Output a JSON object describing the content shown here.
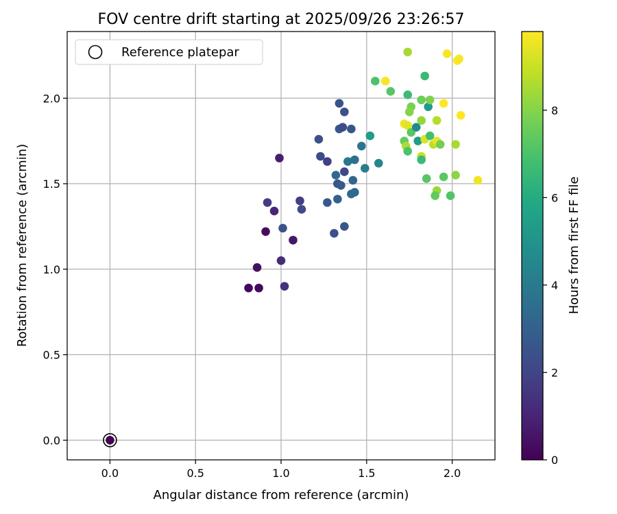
{
  "chart_data": {
    "type": "scatter",
    "title": "FOV centre drift starting at 2025/09/26 23:26:57",
    "xlabel": "Angular distance from reference (arcmin)",
    "ylabel": "Rotation from reference (arcmin)",
    "xlim": [
      -0.25,
      2.25
    ],
    "ylim": [
      -0.115,
      2.39
    ],
    "xticks": [
      "0.0",
      "0.5",
      "1.0",
      "1.5",
      "2.0"
    ],
    "yticks": [
      "0.0",
      "0.5",
      "1.0",
      "1.5",
      "2.0"
    ],
    "grid": true,
    "legend": {
      "label": "Reference platepar",
      "position": "top-left"
    },
    "reference_point": {
      "x": 0.0,
      "y": 0.0,
      "hours": 0
    },
    "colorbar": {
      "label": "Hours from first FF file",
      "range": [
        0,
        9.8
      ],
      "ticks": [
        "0",
        "2",
        "4",
        "6",
        "8"
      ],
      "colormap": "viridis"
    },
    "points": [
      {
        "x": 0.81,
        "y": 0.89,
        "h": 0.2
      },
      {
        "x": 0.87,
        "y": 0.89,
        "h": 0.2
      },
      {
        "x": 0.86,
        "y": 1.01,
        "h": 0.4
      },
      {
        "x": 0.91,
        "y": 1.22,
        "h": 0.3
      },
      {
        "x": 1.07,
        "y": 1.17,
        "h": 0.6
      },
      {
        "x": 0.99,
        "y": 1.65,
        "h": 0.8
      },
      {
        "x": 0.96,
        "y": 1.34,
        "h": 1.0
      },
      {
        "x": 1.0,
        "y": 1.05,
        "h": 1.2
      },
      {
        "x": 1.02,
        "y": 0.9,
        "h": 1.4
      },
      {
        "x": 0.92,
        "y": 1.39,
        "h": 1.7
      },
      {
        "x": 1.11,
        "y": 1.4,
        "h": 1.8
      },
      {
        "x": 1.12,
        "y": 1.35,
        "h": 2.2
      },
      {
        "x": 1.01,
        "y": 1.24,
        "h": 2.5
      },
      {
        "x": 1.22,
        "y": 1.76,
        "h": 2.4
      },
      {
        "x": 1.23,
        "y": 1.66,
        "h": 2.3
      },
      {
        "x": 1.27,
        "y": 1.63,
        "h": 1.8
      },
      {
        "x": 1.27,
        "y": 1.39,
        "h": 2.7
      },
      {
        "x": 1.31,
        "y": 1.21,
        "h": 2.4
      },
      {
        "x": 1.34,
        "y": 1.97,
        "h": 2.5
      },
      {
        "x": 1.37,
        "y": 1.92,
        "h": 2.4
      },
      {
        "x": 1.34,
        "y": 1.82,
        "h": 2.7
      },
      {
        "x": 1.36,
        "y": 1.83,
        "h": 2.2
      },
      {
        "x": 1.41,
        "y": 1.82,
        "h": 2.6
      },
      {
        "x": 1.37,
        "y": 1.57,
        "h": 2.1
      },
      {
        "x": 1.33,
        "y": 1.5,
        "h": 2.5
      },
      {
        "x": 1.35,
        "y": 1.49,
        "h": 2.8
      },
      {
        "x": 1.32,
        "y": 1.55,
        "h": 3.3
      },
      {
        "x": 1.33,
        "y": 1.41,
        "h": 3.0
      },
      {
        "x": 1.37,
        "y": 1.25,
        "h": 2.6
      },
      {
        "x": 1.39,
        "y": 1.63,
        "h": 3.9
      },
      {
        "x": 1.43,
        "y": 1.64,
        "h": 3.6
      },
      {
        "x": 1.42,
        "y": 1.52,
        "h": 3.2
      },
      {
        "x": 1.41,
        "y": 1.44,
        "h": 3.4
      },
      {
        "x": 1.43,
        "y": 1.45,
        "h": 3.3
      },
      {
        "x": 1.47,
        "y": 1.72,
        "h": 3.8
      },
      {
        "x": 1.49,
        "y": 1.59,
        "h": 4.2
      },
      {
        "x": 1.52,
        "y": 1.78,
        "h": 5.4
      },
      {
        "x": 1.57,
        "y": 1.62,
        "h": 4.5
      },
      {
        "x": 1.55,
        "y": 2.1,
        "h": 7.0
      },
      {
        "x": 1.61,
        "y": 2.1,
        "h": 9.7
      },
      {
        "x": 1.64,
        "y": 2.04,
        "h": 7.2
      },
      {
        "x": 1.74,
        "y": 2.27,
        "h": 8.5
      },
      {
        "x": 1.74,
        "y": 2.02,
        "h": 6.7
      },
      {
        "x": 1.76,
        "y": 1.95,
        "h": 7.8
      },
      {
        "x": 1.75,
        "y": 1.92,
        "h": 8.0
      },
      {
        "x": 1.72,
        "y": 1.85,
        "h": 9.6
      },
      {
        "x": 1.74,
        "y": 1.84,
        "h": 9.4
      },
      {
        "x": 1.76,
        "y": 1.8,
        "h": 7.3
      },
      {
        "x": 1.79,
        "y": 1.83,
        "h": 4.6
      },
      {
        "x": 1.72,
        "y": 1.75,
        "h": 7.5
      },
      {
        "x": 1.73,
        "y": 1.72,
        "h": 8.6
      },
      {
        "x": 1.74,
        "y": 1.69,
        "h": 7.0
      },
      {
        "x": 1.8,
        "y": 1.75,
        "h": 5.5
      },
      {
        "x": 1.82,
        "y": 1.87,
        "h": 8.2
      },
      {
        "x": 1.82,
        "y": 1.99,
        "h": 7.6
      },
      {
        "x": 1.84,
        "y": 2.13,
        "h": 6.6
      },
      {
        "x": 1.86,
        "y": 1.95,
        "h": 5.3
      },
      {
        "x": 1.87,
        "y": 1.99,
        "h": 7.9
      },
      {
        "x": 1.84,
        "y": 1.76,
        "h": 9.3
      },
      {
        "x": 1.87,
        "y": 1.78,
        "h": 6.8
      },
      {
        "x": 1.89,
        "y": 1.73,
        "h": 8.8
      },
      {
        "x": 1.91,
        "y": 1.75,
        "h": 9.5
      },
      {
        "x": 1.93,
        "y": 1.73,
        "h": 7.7
      },
      {
        "x": 1.91,
        "y": 1.87,
        "h": 8.7
      },
      {
        "x": 1.95,
        "y": 1.97,
        "h": 9.8
      },
      {
        "x": 1.82,
        "y": 1.66,
        "h": 9.0
      },
      {
        "x": 1.82,
        "y": 1.64,
        "h": 6.6
      },
      {
        "x": 1.85,
        "y": 1.53,
        "h": 7.2
      },
      {
        "x": 1.95,
        "y": 1.54,
        "h": 7.3
      },
      {
        "x": 1.91,
        "y": 1.46,
        "h": 8.3
      },
      {
        "x": 1.9,
        "y": 1.43,
        "h": 7.4
      },
      {
        "x": 1.99,
        "y": 1.43,
        "h": 7.1
      },
      {
        "x": 2.02,
        "y": 1.73,
        "h": 8.5
      },
      {
        "x": 2.02,
        "y": 1.55,
        "h": 8.1
      },
      {
        "x": 1.97,
        "y": 2.26,
        "h": 9.7
      },
      {
        "x": 2.03,
        "y": 2.22,
        "h": 9.8
      },
      {
        "x": 2.04,
        "y": 2.23,
        "h": 9.7
      },
      {
        "x": 2.05,
        "y": 1.9,
        "h": 9.8
      },
      {
        "x": 2.15,
        "y": 1.52,
        "h": 9.6
      }
    ]
  }
}
